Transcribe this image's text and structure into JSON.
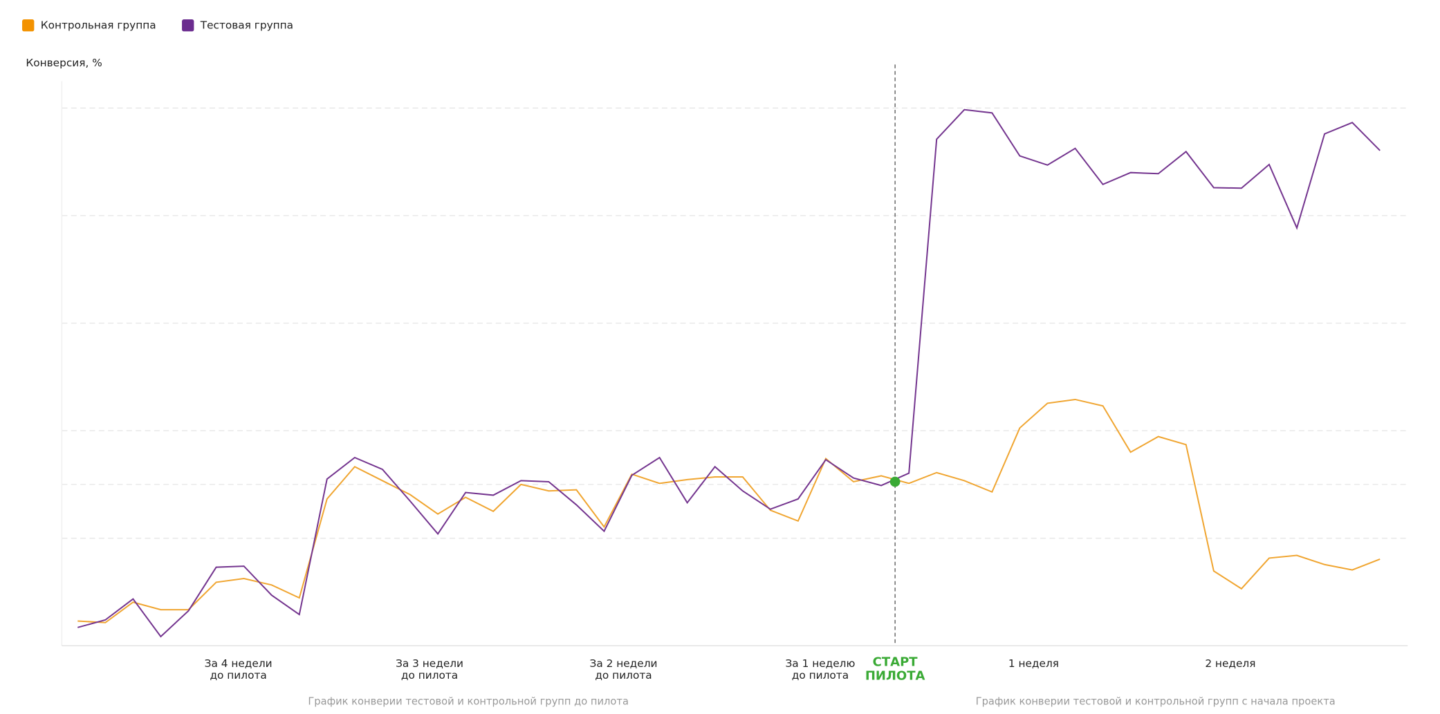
{
  "chart_data": {
    "type": "line",
    "y_label": "Конверсия, %",
    "x": [
      0,
      1,
      2,
      3,
      4,
      5,
      6,
      7,
      8,
      9,
      10,
      11,
      12,
      13,
      14,
      15,
      16,
      17,
      18,
      19,
      20,
      21,
      22,
      23,
      24,
      25,
      26,
      27,
      28,
      29,
      30,
      31,
      32,
      33,
      34,
      35,
      36,
      37,
      38,
      39,
      40,
      41,
      42,
      43,
      44,
      45,
      46,
      47
    ],
    "series": [
      {
        "name": "Контрольная группа",
        "color": "#f0a530",
        "legend_color": "#f39200",
        "values": [
          0.46,
          0.43,
          0.81,
          0.67,
          0.67,
          1.18,
          1.25,
          1.13,
          0.89,
          2.73,
          3.33,
          3.07,
          2.81,
          2.45,
          2.76,
          2.5,
          3.0,
          2.88,
          2.9,
          2.21,
          3.19,
          3.02,
          3.09,
          3.14,
          3.14,
          2.52,
          2.32,
          3.48,
          3.05,
          3.16,
          3.02,
          3.22,
          3.07,
          2.86,
          4.05,
          4.51,
          4.58,
          4.46,
          3.6,
          3.89,
          3.74,
          1.39,
          1.06,
          1.63,
          1.68,
          1.51,
          1.41,
          1.61
        ]
      },
      {
        "name": "Тестовая группа",
        "color": "#74358f",
        "legend_color": "#6b2c8f",
        "values": [
          0.34,
          0.48,
          0.87,
          0.17,
          0.65,
          1.46,
          1.48,
          0.94,
          0.58,
          3.1,
          3.5,
          3.28,
          2.69,
          2.08,
          2.85,
          2.8,
          3.07,
          3.05,
          2.62,
          2.13,
          3.17,
          3.5,
          2.66,
          3.33,
          2.88,
          2.54,
          2.73,
          3.46,
          3.12,
          2.98,
          3.21,
          9.42,
          9.97,
          9.91,
          9.11,
          8.94,
          9.25,
          8.58,
          8.8,
          8.78,
          9.19,
          8.52,
          8.51,
          8.95,
          7.77,
          9.52,
          9.73,
          9.21
        ]
      }
    ],
    "xlim": [
      -0.57,
      48.0
    ],
    "ylim": [
      0,
      10.5
    ],
    "xticks": [
      {
        "value": 5.8,
        "label": "За 4 недели\nдо пилота"
      },
      {
        "value": 12.7,
        "label": "За 3 недели\nдо пилота"
      },
      {
        "value": 19.7,
        "label": "За 2 недели\nдо пилота"
      },
      {
        "value": 26.8,
        "label": "За 1 неделю\nдо пилота"
      },
      {
        "value": 34.5,
        "label": "1 неделя"
      },
      {
        "value": 41.6,
        "label": "2 неделя"
      }
    ],
    "ygrid": [
      2,
      3,
      4,
      6,
      8,
      10
    ],
    "grid": true,
    "legend": "top-left",
    "annotation": {
      "text": "СТАРТ\nПИЛОТА",
      "x": 29.5,
      "y": 3.05,
      "color": "#3aaa35"
    },
    "captions": [
      {
        "text": "График конверии тестовой и контрольной групп до пилота",
        "x": 14.1
      },
      {
        "text": "График конверии тестовой и контрольной групп с начала проекта",
        "x": 38.9
      }
    ]
  }
}
